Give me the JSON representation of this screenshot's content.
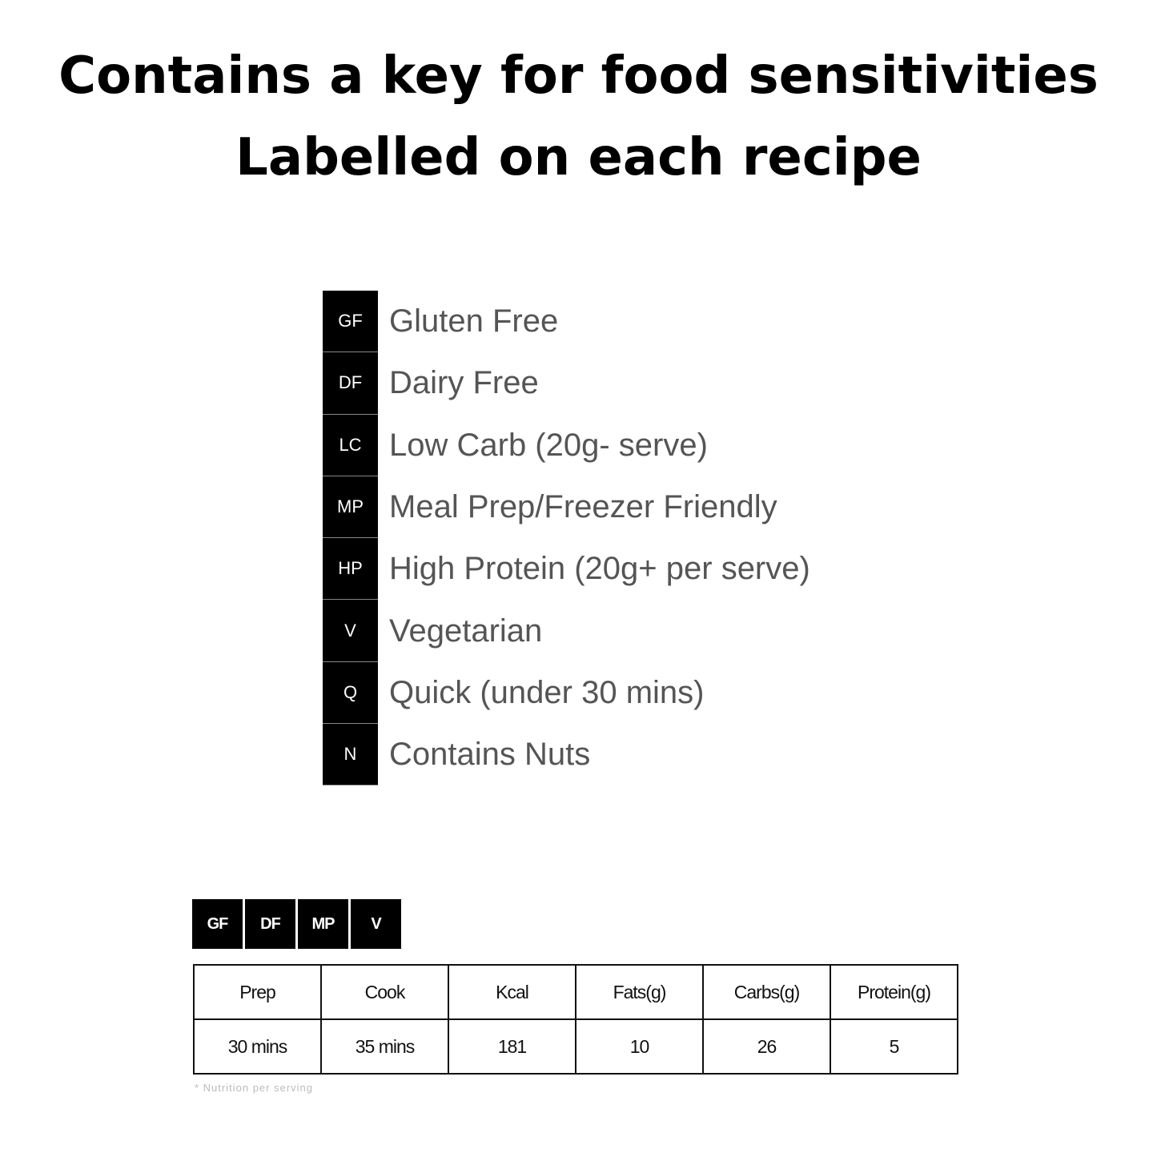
{
  "title_lines": [
    "Contains a key for food sensitivities",
    "Labelled on each recipe"
  ],
  "key": [
    {
      "code": "GF",
      "label": "Gluten Free"
    },
    {
      "code": "DF",
      "label": "Dairy Free"
    },
    {
      "code": "LC",
      "label": "Low Carb (20g- serve)"
    },
    {
      "code": "MP",
      "label": "Meal Prep/Freezer Friendly"
    },
    {
      "code": "HP",
      "label": "High Protein (20g+ per serve)"
    },
    {
      "code": "V",
      "label": "Vegetarian"
    },
    {
      "code": "Q",
      "label": "Quick (under 30 mins)"
    },
    {
      "code": "N",
      "label": "Contains Nuts"
    }
  ],
  "recipe_badges": [
    "GF",
    "DF",
    "MP",
    "V"
  ],
  "nutrition_table": {
    "headers": [
      "Prep",
      "Cook",
      "Kcal",
      "Fats(g)",
      "Carbs(g)",
      "Protein(g)"
    ],
    "values": [
      "30 mins",
      "35 mins",
      "181",
      "10",
      "26",
      "5"
    ]
  },
  "footnote": "* Nutrition per serving"
}
